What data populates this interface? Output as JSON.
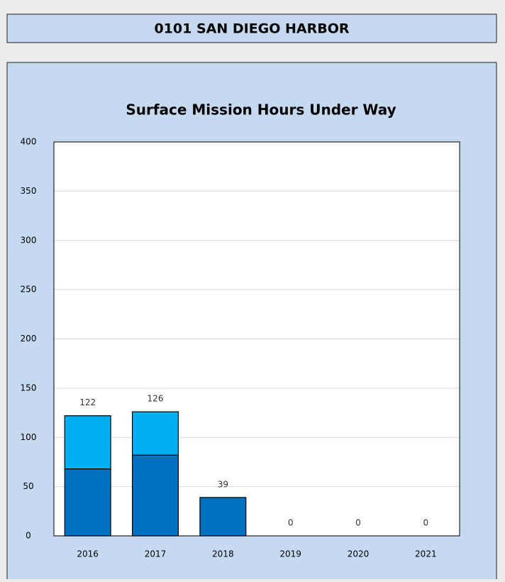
{
  "header": {
    "title": "0101 SAN DIEGO HARBOR"
  },
  "chart_data": {
    "type": "stacked_bar",
    "title": "Surface Mission Hours Under Way",
    "categories": [
      "2016",
      "2017",
      "2018",
      "2019",
      "2020",
      "2021"
    ],
    "series": [
      {
        "color": "#0070c0",
        "values": [
          68,
          82,
          39,
          0,
          0,
          0
        ]
      },
      {
        "color": "#00b0f0",
        "values": [
          54,
          44,
          0,
          0,
          0,
          0
        ]
      }
    ],
    "totals": [
      122,
      126,
      39,
      0,
      0,
      0
    ],
    "ylim": [
      0,
      400
    ],
    "yticks": [
      0,
      50,
      100,
      150,
      200,
      250,
      300,
      350,
      400
    ],
    "grid": true
  }
}
